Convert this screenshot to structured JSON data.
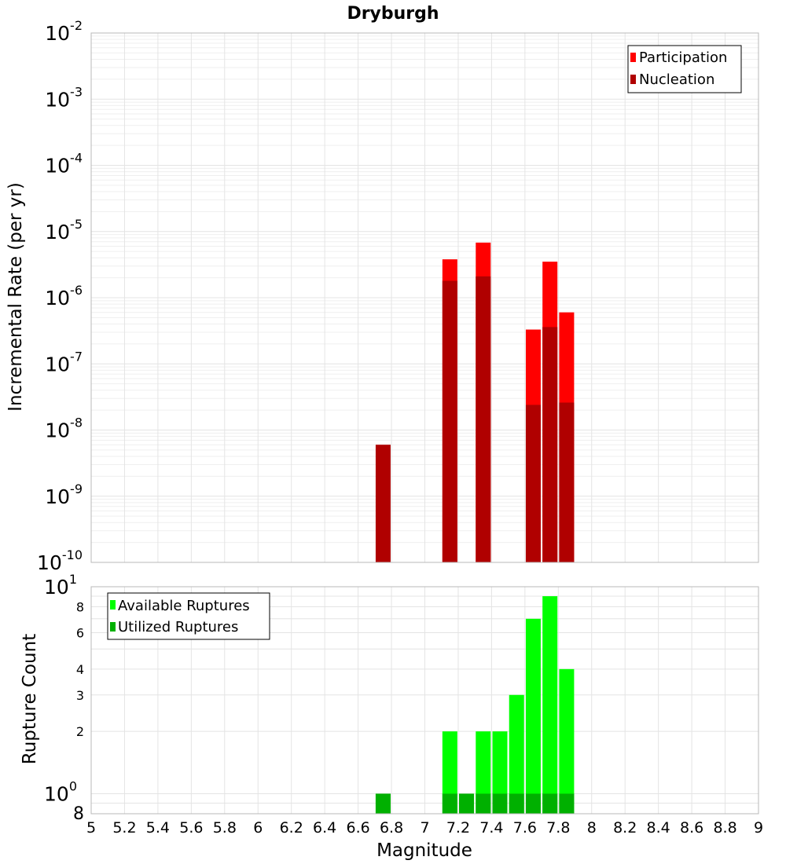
{
  "colors": {
    "participation": "#ff0000",
    "nucleation": "#b00000",
    "available": "#00ff00",
    "utilized": "#00b000",
    "grid": "#e4e4e4",
    "frame": "#b8b8b8"
  },
  "chart_data": [
    {
      "type": "bar",
      "title": "Dryburgh",
      "xlabel": "",
      "ylabel": "Incremental Rate (per yr)",
      "yscale": "log",
      "ylim": [
        1e-10,
        0.01
      ],
      "xlim": [
        5,
        9
      ],
      "grid": true,
      "legend_position": "top-right",
      "y_ticks": [
        {
          "base": "10",
          "exp": "-2",
          "value": 0.01
        },
        {
          "base": "10",
          "exp": "-3",
          "value": 0.001
        },
        {
          "base": "10",
          "exp": "-4",
          "value": 0.0001
        },
        {
          "base": "10",
          "exp": "-5",
          "value": 1e-05
        },
        {
          "base": "10",
          "exp": "-6",
          "value": 1e-06
        },
        {
          "base": "10",
          "exp": "-7",
          "value": 1e-07
        },
        {
          "base": "10",
          "exp": "-8",
          "value": 1e-08
        },
        {
          "base": "10",
          "exp": "-9",
          "value": 1e-09
        },
        {
          "base": "10",
          "exp": "-10",
          "value": 1e-10
        }
      ],
      "series": [
        {
          "name": "Participation",
          "color": "#ff0000",
          "points": [
            {
              "x": 7.15,
              "y": 3.8e-06
            },
            {
              "x": 7.35,
              "y": 6.8e-06
            },
            {
              "x": 7.65,
              "y": 3.3e-07
            },
            {
              "x": 7.75,
              "y": 3.5e-06
            },
            {
              "x": 7.85,
              "y": 6e-07
            }
          ]
        },
        {
          "name": "Nucleation",
          "color": "#b00000",
          "points": [
            {
              "x": 6.75,
              "y": 6e-09
            },
            {
              "x": 7.15,
              "y": 1.8e-06
            },
            {
              "x": 7.35,
              "y": 2.1e-06
            },
            {
              "x": 7.65,
              "y": 2.4e-08
            },
            {
              "x": 7.75,
              "y": 3.6e-07
            },
            {
              "x": 7.85,
              "y": 2.6e-08
            }
          ]
        }
      ]
    },
    {
      "type": "bar",
      "title": "",
      "xlabel": "Magnitude",
      "ylabel": "Rupture Count",
      "yscale": "log",
      "ylim": [
        0.8,
        10
      ],
      "xlim": [
        5,
        9
      ],
      "grid": true,
      "legend_position": "top-left",
      "x_ticks": [
        "5",
        "5.2",
        "5.4",
        "5.6",
        "5.8",
        "6",
        "6.2",
        "6.4",
        "6.6",
        "6.8",
        "7",
        "7.2",
        "7.4",
        "7.6",
        "7.8",
        "8",
        "8.2",
        "8.4",
        "8.6",
        "8.8",
        "9"
      ],
      "y_ticks_major": [
        {
          "base": "10",
          "exp": "1",
          "value": 10
        },
        {
          "base": "10",
          "exp": "0",
          "value": 1
        }
      ],
      "y_ticks_minor": [
        {
          "label": "8",
          "value": 8
        },
        {
          "label": "6",
          "value": 6
        },
        {
          "label": "4",
          "value": 4
        },
        {
          "label": "3",
          "value": 3
        },
        {
          "label": "2",
          "value": 2
        }
      ],
      "y_bottom_label": "8",
      "series": [
        {
          "name": "Available Ruptures",
          "color": "#00ff00",
          "points": [
            {
              "x": 6.75,
              "y": 1
            },
            {
              "x": 7.15,
              "y": 2
            },
            {
              "x": 7.25,
              "y": 1
            },
            {
              "x": 7.35,
              "y": 2
            },
            {
              "x": 7.45,
              "y": 2
            },
            {
              "x": 7.55,
              "y": 3
            },
            {
              "x": 7.65,
              "y": 7
            },
            {
              "x": 7.75,
              "y": 9
            },
            {
              "x": 7.85,
              "y": 4
            }
          ]
        },
        {
          "name": "Utilized Ruptures",
          "color": "#00b000",
          "points": [
            {
              "x": 6.75,
              "y": 1
            },
            {
              "x": 7.15,
              "y": 1
            },
            {
              "x": 7.25,
              "y": 1
            },
            {
              "x": 7.35,
              "y": 1
            },
            {
              "x": 7.45,
              "y": 1
            },
            {
              "x": 7.55,
              "y": 1
            },
            {
              "x": 7.65,
              "y": 1
            },
            {
              "x": 7.75,
              "y": 1
            },
            {
              "x": 7.85,
              "y": 1
            }
          ]
        }
      ]
    }
  ]
}
